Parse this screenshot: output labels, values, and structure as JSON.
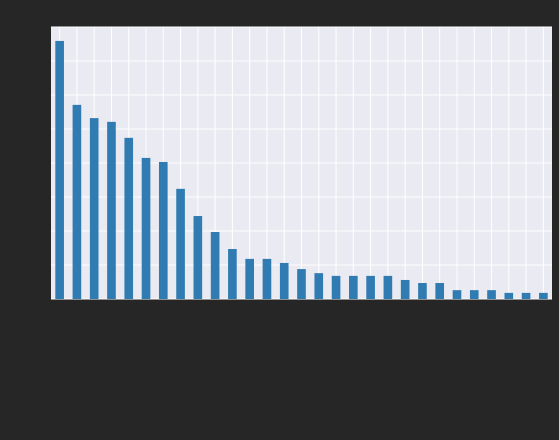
{
  "chart_data": {
    "type": "bar",
    "categories": [
      null,
      null,
      null,
      null,
      null,
      null,
      null,
      null,
      null,
      null,
      null,
      null,
      null,
      null,
      null,
      null,
      null,
      null,
      null,
      null,
      null,
      null,
      null,
      null,
      null,
      null,
      null,
      null,
      null
    ],
    "values": [
      7.59,
      5.71,
      5.32,
      5.21,
      4.74,
      4.15,
      4.03,
      3.24,
      2.44,
      1.97,
      1.47,
      1.18,
      1.18,
      1.06,
      0.88,
      0.76,
      0.68,
      0.68,
      0.68,
      0.68,
      0.56,
      0.47,
      0.47,
      0.26,
      0.26,
      0.26,
      0.18,
      0.18,
      0.18
    ],
    "color": "#2f7bb2",
    "ylim": [
      0,
      8
    ],
    "yticks": [
      0,
      1,
      2,
      3,
      4,
      5,
      6,
      7,
      8
    ],
    "grid": true
  }
}
